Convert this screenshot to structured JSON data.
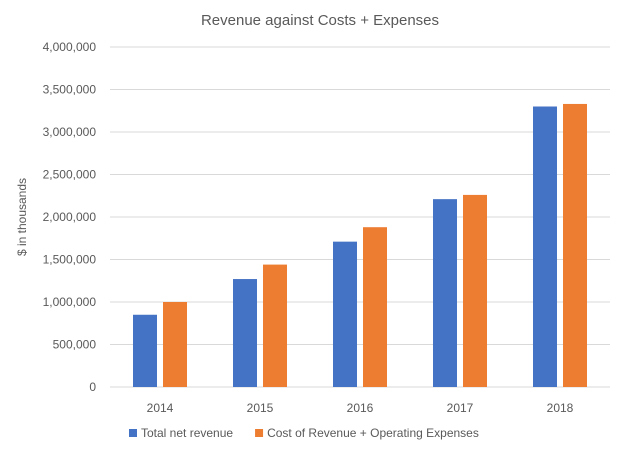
{
  "chart_data": {
    "type": "bar",
    "title": "Revenue against Costs + Expenses",
    "xlabel": "",
    "ylabel": "$ in thousands",
    "categories": [
      "2014",
      "2015",
      "2016",
      "2017",
      "2018"
    ],
    "series": [
      {
        "name": "Total net revenue",
        "color": "#4472C4",
        "values": [
          850000,
          1270000,
          1710000,
          2210000,
          3300000
        ]
      },
      {
        "name": "Cost of Revenue + Operating Expenses",
        "color": "#ED7D31",
        "values": [
          1000000,
          1440000,
          1880000,
          2260000,
          3330000
        ]
      }
    ],
    "ylim": [
      0,
      4000000
    ],
    "yticks": [
      0,
      500000,
      1000000,
      1500000,
      2000000,
      2500000,
      3000000,
      3500000,
      4000000
    ],
    "ytick_labels": [
      "0",
      "500,000",
      "1,000,000",
      "1,500,000",
      "2,000,000",
      "2,500,000",
      "3,000,000",
      "3,500,000",
      "4,000,000"
    ],
    "grid": true,
    "legend_position": "bottom"
  }
}
